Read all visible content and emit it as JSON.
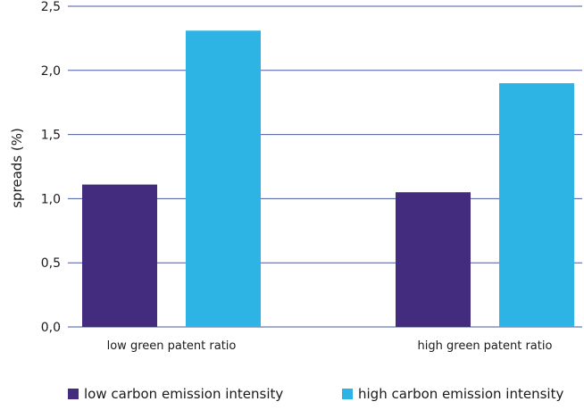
{
  "chart_data": {
    "type": "bar",
    "categories": [
      "low green patent ratio",
      "high green patent ratio"
    ],
    "series": [
      {
        "name": "low carbon emission intensity",
        "values": [
          1.11,
          1.05
        ],
        "color": "#432B7E"
      },
      {
        "name": "high carbon emission intensity",
        "values": [
          2.31,
          1.9
        ],
        "color": "#2EB4E4"
      }
    ],
    "ylabel": "spreads (%)",
    "xlabel": "",
    "ylim": [
      0,
      2.5
    ],
    "yticks": [
      "0,0",
      "0,5",
      "1,0",
      "1,5",
      "2,0",
      "2,5"
    ],
    "grid": true,
    "grid_color": "#4A5A9E",
    "legend_position": "bottom"
  }
}
